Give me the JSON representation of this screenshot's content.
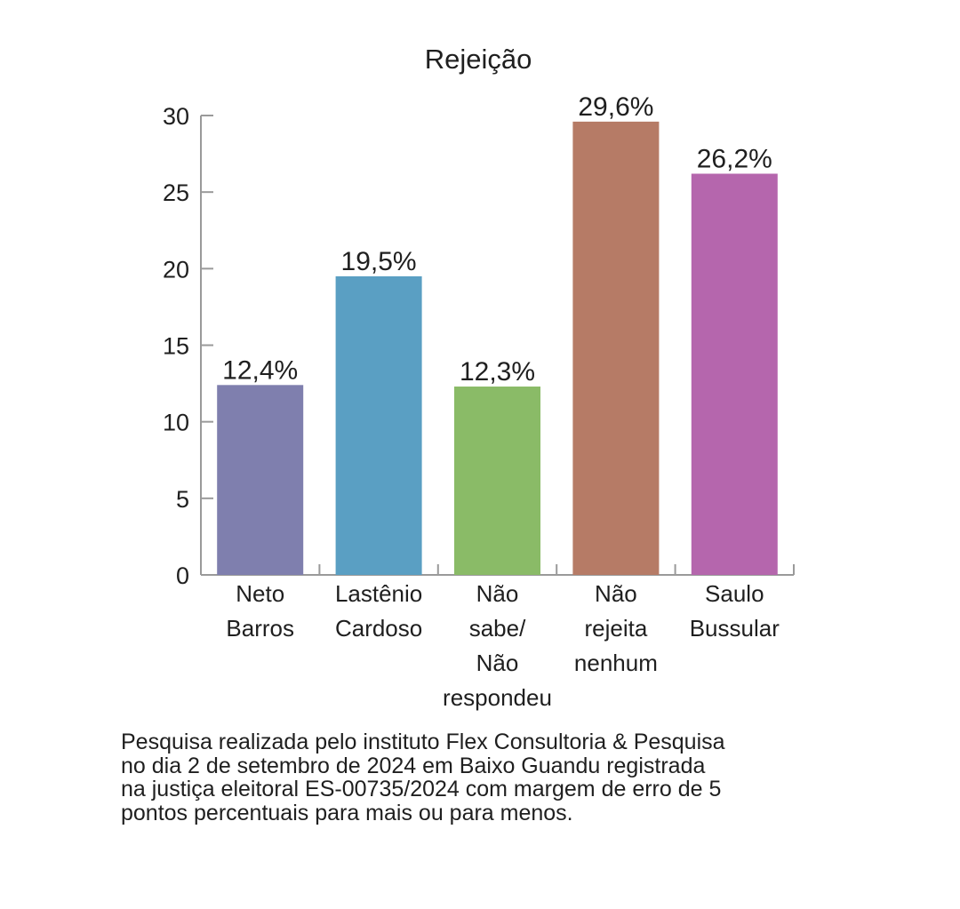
{
  "chart_data": {
    "type": "bar",
    "title": "Rejeição",
    "xlabel": "",
    "ylabel": "",
    "ylim": [
      0,
      30
    ],
    "yticks": [
      "0",
      "5",
      "10",
      "15",
      "20",
      "25",
      "30"
    ],
    "grid": false,
    "legend": "none",
    "categories": [
      [
        "Neto",
        "Barros"
      ],
      [
        "Lastênio",
        "Cardoso"
      ],
      [
        "Não",
        "sabe/",
        "Não",
        "respondeu"
      ],
      [
        "Não",
        "rejeita",
        "nenhum"
      ],
      [
        "Saulo",
        "Bussular"
      ]
    ],
    "values": [
      12.4,
      19.5,
      12.3,
      29.6,
      26.2
    ],
    "data_labels": [
      "12,4%",
      "19,5%",
      "12,3%",
      "29,6%",
      "26,2%"
    ],
    "colors": [
      "#7f7fae",
      "#5a9fc3",
      "#8abb67",
      "#b67b66",
      "#b566ad"
    ]
  },
  "footnote": [
    "Pesquisa realizada pelo instituto Flex Consultoria & Pesquisa",
    "no dia 2 de setembro de 2024 em Baixo Guandu registrada",
    "na justiça eleitoral ES-00735/2024 com margem de erro de 5",
    "pontos percentuais para mais ou para menos."
  ]
}
